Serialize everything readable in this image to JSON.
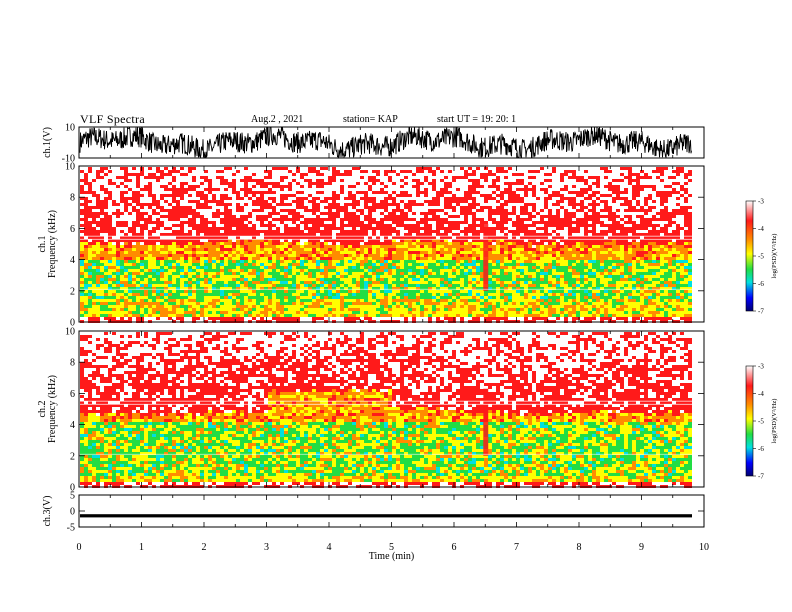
{
  "header": {
    "title": "VLF Spectra",
    "date": "Aug.2 , 2021",
    "station": "station= KAP",
    "start": "start UT = 19: 20: 1"
  },
  "chart_data": [
    {
      "type": "line",
      "panel": "waveform-top",
      "ylabel": "ch.1(V)",
      "ylim": [
        -10,
        10
      ],
      "y_ticks": [
        "10",
        "-10"
      ],
      "xlim": [
        0,
        9.83
      ],
      "description_of_values": "dense noisy waveform mostly between about -6 and +10 V"
    },
    {
      "type": "heatmap",
      "panel": "spectrogram-1",
      "ylabel": "ch.1\nFrequency (kHz)",
      "ylim": [
        0,
        10
      ],
      "y_ticks": [
        "0",
        "2",
        "4",
        "6",
        "8",
        "10"
      ],
      "xlim": [
        0,
        9.83
      ],
      "colorbar": {
        "label": "log(PSD)(V²/Hz)",
        "ticks": [
          "-3",
          "-4",
          "-5",
          "-6",
          "-7"
        ],
        "range": [
          -7,
          -3
        ]
      },
      "band_edge_khz": [
        4.7,
        4.7,
        4.9,
        4.8,
        4.6,
        4.9,
        4.8,
        4.6,
        4.8,
        4.7
      ],
      "green_band_khz": [
        1.5,
        4.0
      ],
      "emission_times_min": [
        6.5
      ]
    },
    {
      "type": "heatmap",
      "panel": "spectrogram-2",
      "ylabel": "ch.2\nFrequency (kHz)",
      "ylim": [
        0,
        10
      ],
      "y_ticks": [
        "0",
        "2",
        "4",
        "6",
        "8",
        "10"
      ],
      "xlim": [
        0,
        9.83
      ],
      "colorbar": {
        "label": "log(PSD)(V²/Hz)",
        "ticks": [
          "-3",
          "-4",
          "-5",
          "-6",
          "-7"
        ],
        "range": [
          -7,
          -3
        ]
      },
      "band_edge_khz": [
        4.4,
        4.3,
        4.5,
        5.8,
        5.9,
        4.7,
        4.5,
        4.4,
        4.5,
        4.4
      ],
      "green_band_khz": [
        0.8,
        4.2
      ],
      "emission_times_min": [
        6.5
      ]
    },
    {
      "type": "line",
      "panel": "waveform-bottom",
      "ylabel": "ch.3(V)",
      "ylim": [
        -5,
        5
      ],
      "y_ticks": [
        "5",
        "0",
        "-5"
      ],
      "xlim": [
        0,
        9.83
      ],
      "level": -1.5,
      "amplitude": 0.5
    }
  ],
  "x_axis": {
    "label": "Time (min)",
    "ticks": [
      "0",
      "1",
      "2",
      "3",
      "4",
      "5",
      "6",
      "7",
      "8",
      "9",
      "10"
    ],
    "range": [
      0,
      10
    ]
  },
  "colors": {
    "white": "#ffffff",
    "red": "#ff1a1a",
    "orange": "#ff8c00",
    "yellow": "#ffff00",
    "green": "#22dd44",
    "cyan": "#00e0e0",
    "blue": "#0000ff",
    "navy": "#000070"
  }
}
